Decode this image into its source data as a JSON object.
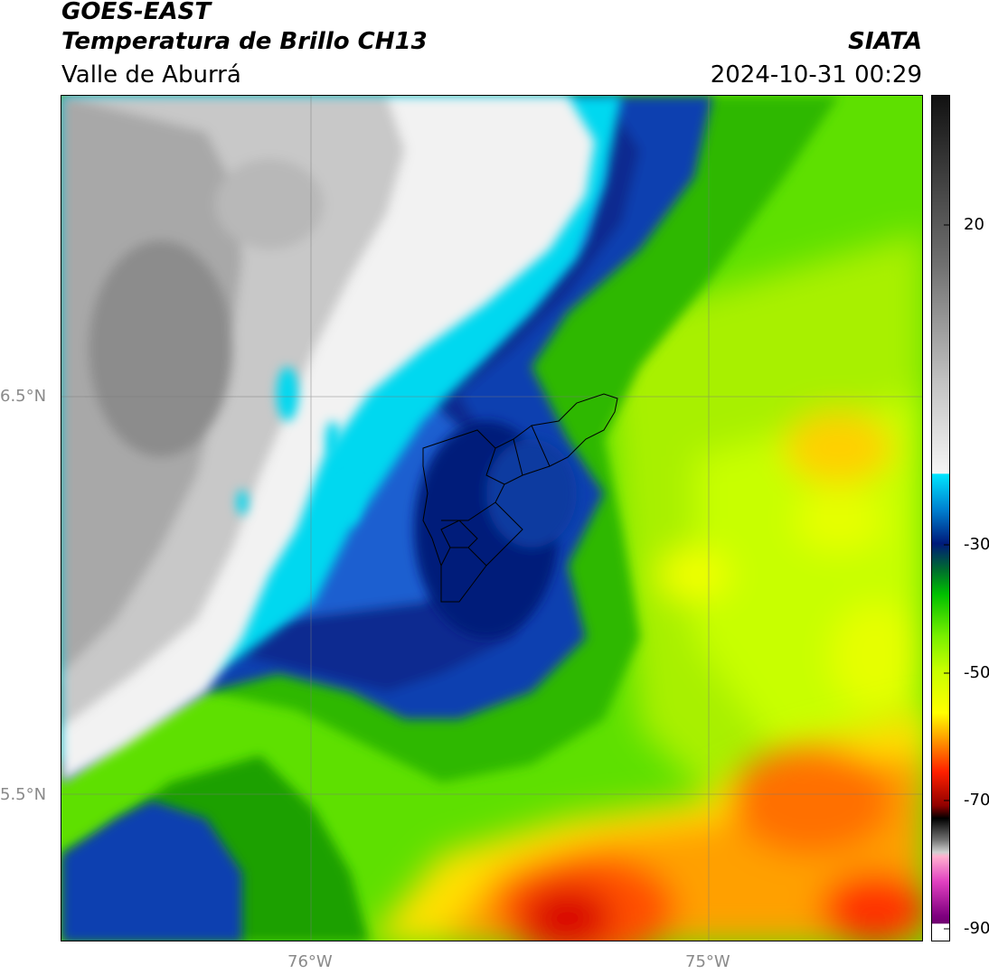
{
  "header": {
    "title": "GOES-EAST",
    "subtitle": "Temperatura de Brillo CH13",
    "region": "Valle de Aburrá",
    "organization": "SIATA",
    "datetime": "2024-10-31 00:29"
  },
  "map": {
    "lat_labels": [
      "6.5°N",
      "5.5°N"
    ],
    "lon_labels": [
      "76°W",
      "75°W"
    ],
    "gridlines": true
  },
  "colorbar": {
    "tick_labels": [
      "20",
      "-30",
      "-50",
      "-70",
      "-90"
    ],
    "colors": {
      "gray_dark": "#1a1a1a",
      "gray_light": "#f5f5f5",
      "cyan": "#00e5ff",
      "navy": "#001a7a",
      "green": "#00c000",
      "lime": "#c8ff00",
      "yellow": "#ffff00",
      "orange": "#ff8000",
      "red": "#e00000",
      "magenta": "#ff66cc",
      "purple": "#800080"
    }
  }
}
